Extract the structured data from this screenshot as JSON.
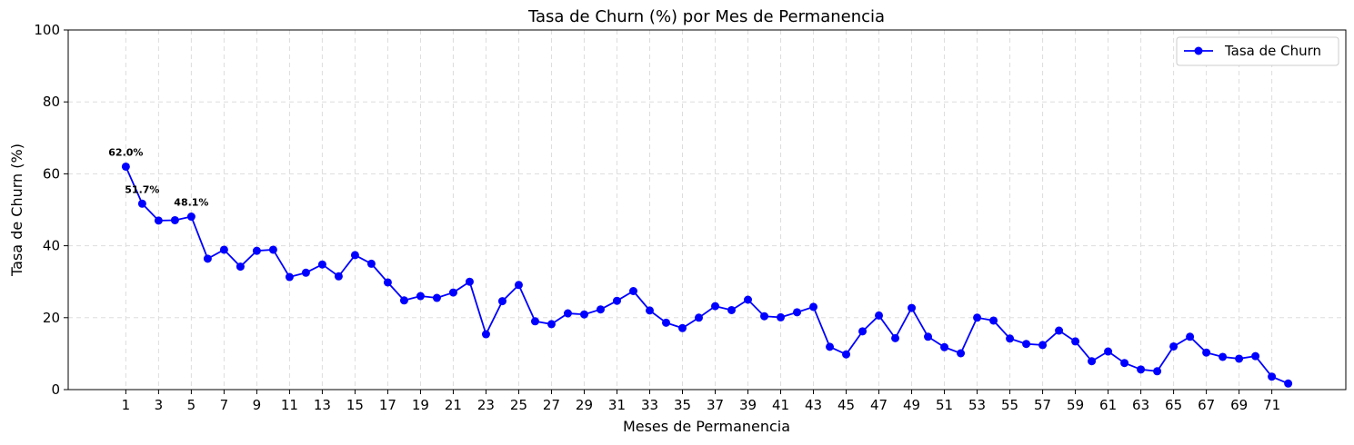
{
  "chart_data": {
    "type": "line",
    "title": "Tasa de Churn (%) por Mes de Permanencia",
    "xlabel": "Meses de Permanencia",
    "ylabel": "Tasa de Churn (%)",
    "ylim": [
      0,
      100
    ],
    "yticks": [
      0,
      20,
      40,
      60,
      80,
      100
    ],
    "xticks": [
      1,
      3,
      5,
      7,
      9,
      11,
      13,
      15,
      17,
      19,
      21,
      23,
      25,
      27,
      29,
      31,
      33,
      35,
      37,
      39,
      41,
      43,
      45,
      47,
      49,
      51,
      53,
      55,
      57,
      59,
      61,
      63,
      65,
      67,
      69,
      71
    ],
    "grid": true,
    "legend_position": "top-right",
    "series": [
      {
        "name": "Tasa de Churn",
        "color": "#0000ff",
        "x": [
          1,
          2,
          3,
          4,
          5,
          6,
          7,
          8,
          9,
          10,
          11,
          12,
          13,
          14,
          15,
          16,
          17,
          18,
          19,
          20,
          21,
          22,
          23,
          24,
          25,
          26,
          27,
          28,
          29,
          30,
          31,
          32,
          33,
          34,
          35,
          36,
          37,
          38,
          39,
          40,
          41,
          42,
          43,
          44,
          45,
          46,
          47,
          48,
          49,
          50,
          51,
          52,
          53,
          54,
          55,
          56,
          57,
          58,
          59,
          60,
          61,
          62,
          63,
          64,
          65,
          66,
          67,
          68,
          69,
          70,
          71,
          72
        ],
        "values": [
          62.0,
          51.7,
          47.0,
          47.1,
          48.1,
          36.4,
          38.9,
          34.2,
          38.6,
          38.9,
          31.3,
          32.5,
          34.8,
          31.5,
          37.4,
          35.0,
          29.8,
          24.8,
          26.0,
          25.5,
          27.0,
          30.0,
          15.4,
          24.6,
          29.1,
          19.0,
          18.2,
          21.2,
          20.9,
          22.3,
          24.7,
          27.4,
          22.0,
          18.6,
          17.1,
          20.0,
          23.2,
          22.1,
          25.0,
          20.4,
          20.1,
          21.5,
          23.0,
          11.9,
          9.8,
          16.2,
          20.6,
          14.3,
          22.7,
          14.7,
          11.8,
          10.1,
          20.0,
          19.2,
          14.2,
          12.7,
          12.4,
          16.4,
          13.4,
          7.9,
          10.6,
          7.4,
          5.6,
          5.1,
          12.0,
          14.7,
          10.3,
          9.1,
          8.6,
          9.3,
          3.6,
          1.7
        ]
      }
    ],
    "annotations": [
      {
        "x": 1,
        "y": 62.0,
        "text": "62.0%"
      },
      {
        "x": 2,
        "y": 51.7,
        "text": "51.7%"
      },
      {
        "x": 5,
        "y": 48.1,
        "text": "48.1%"
      }
    ]
  }
}
